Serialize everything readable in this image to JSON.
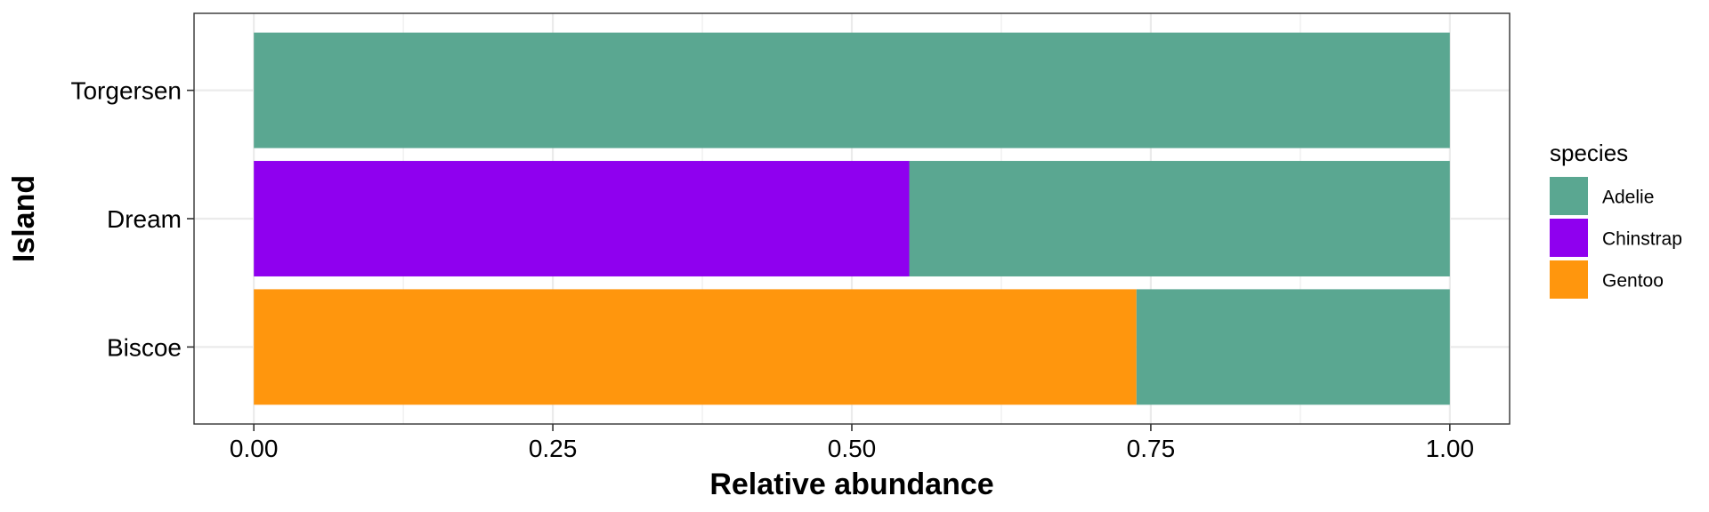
{
  "chart_data": {
    "type": "bar",
    "orientation": "horizontal",
    "stacked": true,
    "title": "",
    "xlabel": "Relative abundance",
    "ylabel": "Island",
    "xlim": [
      -0.05,
      1.05
    ],
    "x_ticks": [
      0,
      0.25,
      0.5,
      0.75,
      1
    ],
    "x_tick_labels": [
      "0.00",
      "0.25",
      "0.50",
      "0.75",
      "1.00"
    ],
    "categories": [
      "Biscoe",
      "Dream",
      "Torgersen"
    ],
    "series": [
      {
        "name": "Gentoo",
        "color": "#FF960D",
        "values": [
          0.738,
          0,
          0
        ]
      },
      {
        "name": "Chinstrap",
        "color": "#8F00EF",
        "values": [
          0,
          0.548,
          0
        ]
      },
      {
        "name": "Adelie",
        "color": "#5AA791",
        "values": [
          0.262,
          0.452,
          1.0
        ]
      }
    ],
    "legend": {
      "title": "species",
      "position": "right",
      "entries": [
        {
          "label": "Adelie",
          "color": "#5AA791"
        },
        {
          "label": "Chinstrap",
          "color": "#8F00EF"
        },
        {
          "label": "Gentoo",
          "color": "#FF960D"
        }
      ]
    },
    "grid": true,
    "theme": "bw"
  }
}
